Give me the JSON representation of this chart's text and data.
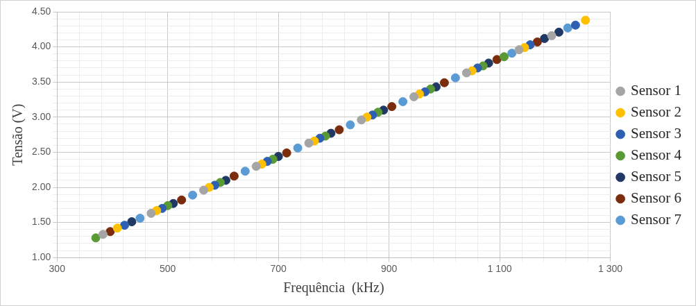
{
  "chart_data": {
    "type": "scatter",
    "xlabel": "Frequência  (kHz)",
    "ylabel": "Tensão (V)",
    "xlim": [
      300,
      1300
    ],
    "ylim": [
      1.0,
      4.5
    ],
    "xticks": [
      300,
      {
        "value": 340,
        "label": null
      },
      {
        "value": 380,
        "label": null
      },
      {
        "value": 420,
        "label": null
      },
      {
        "value": 460,
        "label": null
      },
      500,
      {
        "value": 540,
        "label": null
      },
      {
        "value": 580,
        "label": null
      },
      {
        "value": 620,
        "label": null
      },
      {
        "value": 660,
        "label": null
      },
      700,
      {
        "value": 740,
        "label": null
      },
      {
        "value": 780,
        "label": null
      },
      {
        "value": 820,
        "label": null
      },
      {
        "value": 860,
        "label": null
      },
      900,
      {
        "value": 940,
        "label": null
      },
      {
        "value": 980,
        "label": null
      },
      {
        "value": 1020,
        "label": null
      },
      {
        "value": 1060,
        "label": null
      },
      {
        "value": 1100,
        "label": "1 100"
      },
      {
        "value": 1140,
        "label": null
      },
      {
        "value": 1180,
        "label": null
      },
      {
        "value": 1220,
        "label": null
      },
      {
        "value": 1260,
        "label": null
      },
      {
        "value": 1300,
        "label": "1 300"
      }
    ],
    "yticks": [
      {
        "value": 1.0,
        "label": "1.00"
      },
      {
        "value": 1.1,
        "label": null
      },
      {
        "value": 1.2,
        "label": null
      },
      {
        "value": 1.3,
        "label": null
      },
      {
        "value": 1.4,
        "label": null
      },
      {
        "value": 1.5,
        "label": "1.50"
      },
      {
        "value": 1.6,
        "label": null
      },
      {
        "value": 1.7,
        "label": null
      },
      {
        "value": 1.8,
        "label": null
      },
      {
        "value": 1.9,
        "label": null
      },
      {
        "value": 2.0,
        "label": "2.00"
      },
      {
        "value": 2.1,
        "label": null
      },
      {
        "value": 2.2,
        "label": null
      },
      {
        "value": 2.3,
        "label": null
      },
      {
        "value": 2.4,
        "label": null
      },
      {
        "value": 2.5,
        "label": "2.50"
      },
      {
        "value": 2.6,
        "label": null
      },
      {
        "value": 2.7,
        "label": null
      },
      {
        "value": 2.8,
        "label": null
      },
      {
        "value": 2.9,
        "label": null
      },
      {
        "value": 3.0,
        "label": "3.00"
      },
      {
        "value": 3.1,
        "label": null
      },
      {
        "value": 3.2,
        "label": null
      },
      {
        "value": 3.3,
        "label": null
      },
      {
        "value": 3.4,
        "label": null
      },
      {
        "value": 3.5,
        "label": "3.50"
      },
      {
        "value": 3.6,
        "label": null
      },
      {
        "value": 3.7,
        "label": null
      },
      {
        "value": 3.8,
        "label": null
      },
      {
        "value": 3.9,
        "label": null
      },
      {
        "value": 4.0,
        "label": "4.00"
      },
      {
        "value": 4.1,
        "label": null
      },
      {
        "value": 4.2,
        "label": null
      },
      {
        "value": 4.3,
        "label": null
      },
      {
        "value": 4.4,
        "label": null
      },
      {
        "value": 4.5,
        "label": "4.50"
      }
    ],
    "grid": true,
    "legend": "right",
    "marker": "circle",
    "series": [
      {
        "name": "Sensor 1",
        "color": "#a5a5a5",
        "x": [
          383,
          470,
          565,
          660,
          755,
          850,
          945,
          1040,
          1135,
          1194
        ],
        "values": [
          1.33,
          1.63,
          1.96,
          2.3,
          2.63,
          2.96,
          3.29,
          3.63,
          3.96,
          4.16
        ]
      },
      {
        "name": "Sensor 2",
        "color": "#ffc000",
        "x": [
          409,
          480,
          575,
          670,
          765,
          860,
          955,
          1050,
          1145,
          1255
        ],
        "values": [
          1.42,
          1.67,
          2.0,
          2.33,
          2.66,
          3.0,
          3.33,
          3.66,
          3.99,
          4.38
        ]
      },
      {
        "name": "Sensor 3",
        "color": "#2e5fb0",
        "x": [
          422,
          490,
          585,
          680,
          775,
          870,
          965,
          1060,
          1155,
          1237
        ],
        "values": [
          1.46,
          1.7,
          2.03,
          2.37,
          2.7,
          3.03,
          3.36,
          3.7,
          4.03,
          4.31
        ]
      },
      {
        "name": "Sensor 4",
        "color": "#5a9a35",
        "x": [
          370,
          500,
          595,
          690,
          785,
          880,
          975,
          1070,
          1108
        ],
        "values": [
          1.28,
          1.74,
          2.07,
          2.4,
          2.73,
          3.07,
          3.4,
          3.73,
          3.86
        ]
      },
      {
        "name": "Sensor 5",
        "color": "#1f3864",
        "x": [
          435,
          510,
          605,
          700,
          795,
          890,
          985,
          1080,
          1181,
          1207
        ],
        "values": [
          1.51,
          1.77,
          2.1,
          2.44,
          2.77,
          3.1,
          3.43,
          3.77,
          4.12,
          4.21
        ]
      },
      {
        "name": "Sensor 6",
        "color": "#7b2c0c",
        "x": [
          396,
          525,
          620,
          715,
          810,
          905,
          1000,
          1095,
          1168
        ],
        "values": [
          1.37,
          1.82,
          2.16,
          2.49,
          2.82,
          3.15,
          3.49,
          3.82,
          4.07
        ]
      },
      {
        "name": "Sensor 7",
        "color": "#5b9bd5",
        "x": [
          450,
          545,
          640,
          735,
          830,
          925,
          1020,
          1122,
          1223
        ],
        "values": [
          1.56,
          1.89,
          2.23,
          2.56,
          2.89,
          3.22,
          3.56,
          3.91,
          4.27
        ]
      }
    ]
  }
}
